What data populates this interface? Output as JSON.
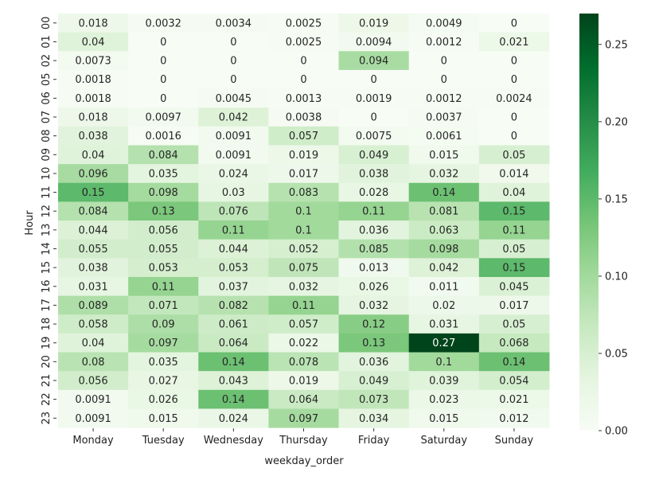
{
  "chart_data": {
    "type": "heatmap",
    "xlabel": "weekday_order",
    "ylabel": "Hour",
    "colormap": "Greens",
    "colorbar": {
      "min": 0.0,
      "max": 0.27,
      "ticks": [
        "0.00",
        "0.05",
        "0.10",
        "0.15",
        "0.20",
        "0.25"
      ]
    },
    "columns": [
      "Monday",
      "Tuesday",
      "Wednesday",
      "Thursday",
      "Friday",
      "Saturday",
      "Sunday"
    ],
    "rows": [
      "00",
      "01",
      "02",
      "05",
      "06",
      "07",
      "08",
      "09",
      "10",
      "11",
      "12",
      "13",
      "14",
      "15",
      "16",
      "17",
      "18",
      "19",
      "20",
      "21",
      "22",
      "23"
    ],
    "values": [
      [
        "0.018",
        "0.0032",
        "0.0034",
        "0.0025",
        "0.019",
        "0.0049",
        "0"
      ],
      [
        "0.04",
        "0",
        "0",
        "0.0025",
        "0.0094",
        "0.0012",
        "0.021"
      ],
      [
        "0.0073",
        "0",
        "0",
        "0",
        "0.094",
        "0",
        "0"
      ],
      [
        "0.0018",
        "0",
        "0",
        "0",
        "0",
        "0",
        "0"
      ],
      [
        "0.0018",
        "0",
        "0.0045",
        "0.0013",
        "0.0019",
        "0.0012",
        "0.0024"
      ],
      [
        "0.018",
        "0.0097",
        "0.042",
        "0.0038",
        "0",
        "0.0037",
        "0"
      ],
      [
        "0.038",
        "0.0016",
        "0.0091",
        "0.057",
        "0.0075",
        "0.0061",
        "0"
      ],
      [
        "0.04",
        "0.084",
        "0.0091",
        "0.019",
        "0.049",
        "0.015",
        "0.05"
      ],
      [
        "0.096",
        "0.035",
        "0.024",
        "0.017",
        "0.038",
        "0.032",
        "0.014"
      ],
      [
        "0.15",
        "0.098",
        "0.03",
        "0.083",
        "0.028",
        "0.14",
        "0.04"
      ],
      [
        "0.084",
        "0.13",
        "0.076",
        "0.1",
        "0.11",
        "0.081",
        "0.15"
      ],
      [
        "0.044",
        "0.056",
        "0.11",
        "0.1",
        "0.036",
        "0.063",
        "0.11"
      ],
      [
        "0.055",
        "0.055",
        "0.044",
        "0.052",
        "0.085",
        "0.098",
        "0.05"
      ],
      [
        "0.038",
        "0.053",
        "0.053",
        "0.075",
        "0.013",
        "0.042",
        "0.15"
      ],
      [
        "0.031",
        "0.11",
        "0.037",
        "0.032",
        "0.026",
        "0.011",
        "0.045"
      ],
      [
        "0.089",
        "0.071",
        "0.082",
        "0.11",
        "0.032",
        "0.02",
        "0.017"
      ],
      [
        "0.058",
        "0.09",
        "0.061",
        "0.057",
        "0.12",
        "0.031",
        "0.05"
      ],
      [
        "0.04",
        "0.097",
        "0.064",
        "0.022",
        "0.13",
        "0.27",
        "0.068"
      ],
      [
        "0.08",
        "0.035",
        "0.14",
        "0.078",
        "0.036",
        "0.1",
        "0.14"
      ],
      [
        "0.056",
        "0.027",
        "0.043",
        "0.019",
        "0.049",
        "0.039",
        "0.054"
      ],
      [
        "0.0091",
        "0.026",
        "0.14",
        "0.064",
        "0.073",
        "0.023",
        "0.021"
      ],
      [
        "0.0091",
        "0.015",
        "0.024",
        "0.097",
        "0.034",
        "0.015",
        "0.012"
      ]
    ]
  }
}
